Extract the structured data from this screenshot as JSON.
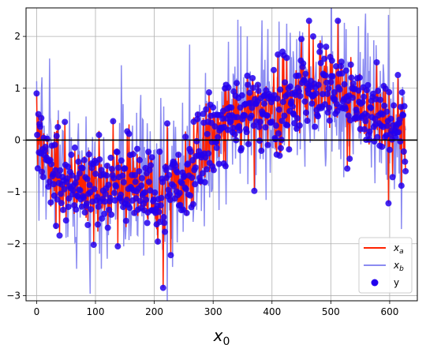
{
  "chart_data": {
    "type": "line",
    "title": "",
    "xlabel": "x",
    "xlabel_sub": "0",
    "ylabel": "",
    "xlim": [
      -18,
      647
    ],
    "ylim": [
      -3.1,
      2.55
    ],
    "xticks": [
      0,
      100,
      200,
      300,
      400,
      500,
      600
    ],
    "yticks": [
      -3,
      -2,
      -1,
      0,
      1,
      2
    ],
    "grid": true,
    "legend_position": "lower-right",
    "horizontal_line": {
      "y": 0,
      "color": "#000000"
    },
    "colors": {
      "xa": "#ff2200",
      "xb": "#7777ee",
      "y": "#2200ee"
    },
    "legend": [
      {
        "key": "xa",
        "label": "x",
        "sub": "a",
        "kind": "line"
      },
      {
        "key": "xb",
        "label": "x",
        "sub": "b",
        "kind": "line"
      },
      {
        "key": "y",
        "label": "y",
        "sub": "",
        "kind": "marker"
      }
    ],
    "series_trend": {
      "x": [
        0,
        25,
        50,
        75,
        100,
        125,
        150,
        175,
        200,
        210,
        225,
        250,
        275,
        300,
        325,
        350,
        375,
        400,
        425,
        450,
        475,
        500,
        525,
        550,
        575,
        600,
        625
      ],
      "y": [
        0.0,
        -0.5,
        -0.8,
        -0.95,
        -1.0,
        -0.95,
        -0.85,
        -0.9,
        -0.95,
        -1.1,
        -0.8,
        -0.6,
        -0.35,
        0.1,
        0.35,
        0.45,
        0.5,
        0.6,
        0.7,
        0.85,
        0.95,
        1.0,
        0.9,
        0.7,
        0.55,
        0.35,
        0.2
      ]
    },
    "n_points": 628,
    "noise_seed": 7,
    "y_marker_extremes": [
      {
        "x": 0,
        "y": 0.9
      },
      {
        "x": 1,
        "y": 0.1
      },
      {
        "x": 3,
        "y": 0.5
      },
      {
        "x": 20,
        "y": -0.9
      },
      {
        "x": 50,
        "y": -1.55
      },
      {
        "x": 48,
        "y": 0.35
      },
      {
        "x": 97,
        "y": -2.02
      },
      {
        "x": 138,
        "y": -2.05
      },
      {
        "x": 215,
        "y": -2.85
      },
      {
        "x": 218,
        "y": -1.77
      },
      {
        "x": 228,
        "y": -2.22
      },
      {
        "x": 222,
        "y": 0.32
      },
      {
        "x": 293,
        "y": 0.92
      },
      {
        "x": 340,
        "y": 1.1
      },
      {
        "x": 370,
        "y": -0.98
      },
      {
        "x": 410,
        "y": 1.65
      },
      {
        "x": 413,
        "y": -0.3
      },
      {
        "x": 450,
        "y": 1.95
      },
      {
        "x": 463,
        "y": 2.3
      },
      {
        "x": 470,
        "y": 2.0
      },
      {
        "x": 492,
        "y": 1.8
      },
      {
        "x": 512,
        "y": 2.3
      },
      {
        "x": 528,
        "y": -0.55
      },
      {
        "x": 578,
        "y": 1.5
      },
      {
        "x": 598,
        "y": -1.22
      },
      {
        "x": 620,
        "y": -0.88
      },
      {
        "x": 627,
        "y": -0.6
      }
    ]
  }
}
